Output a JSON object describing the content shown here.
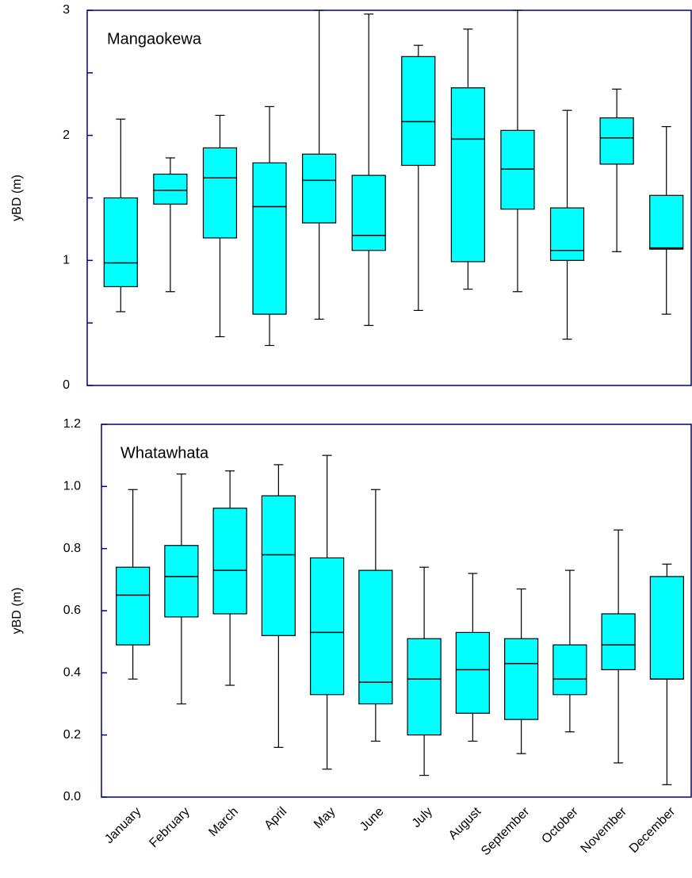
{
  "chart_data": [
    {
      "type": "box",
      "title": "Mangaokewa",
      "y_label": "yBD (m)",
      "ylim": [
        0,
        3
      ],
      "yticks": [
        0,
        1,
        2,
        3
      ],
      "minor_yticks": [
        0.5,
        1.5,
        2.5
      ],
      "color": "#00ffff",
      "axis_color": "#000080",
      "min": [
        0.59,
        0.75,
        0.39,
        0.32,
        0.53,
        0.48,
        0.6,
        0.77,
        0.75,
        0.37,
        1.07,
        0.57
      ],
      "q1": [
        0.79,
        1.45,
        1.18,
        0.57,
        1.3,
        1.08,
        1.76,
        0.99,
        1.41,
        1.0,
        1.77,
        1.09
      ],
      "median": [
        0.98,
        1.56,
        1.66,
        1.43,
        1.64,
        1.2,
        2.11,
        1.97,
        1.73,
        1.08,
        1.98,
        1.1
      ],
      "q3": [
        1.5,
        1.69,
        1.9,
        1.78,
        1.85,
        1.68,
        2.63,
        2.38,
        2.04,
        1.42,
        2.14,
        1.52
      ],
      "max": [
        2.13,
        1.82,
        2.16,
        2.23,
        3.0,
        2.97,
        2.72,
        2.85,
        3.0,
        2.2,
        2.37,
        2.07
      ]
    },
    {
      "type": "box",
      "title": "Whatawhata",
      "y_label": "yBD (m)",
      "categories": [
        "January",
        "February",
        "March",
        "April",
        "May",
        "June",
        "July",
        "August",
        "September",
        "October",
        "November",
        "December"
      ],
      "ylim": [
        0,
        1.2
      ],
      "yticks": [
        {
          "value": 0,
          "label": "0.0"
        },
        0.2,
        0.4,
        0.6,
        0.8,
        {
          "value": 1,
          "label": "1.0"
        },
        1.2
      ],
      "color": "#00ffff",
      "axis_color": "#000080",
      "min": [
        0.38,
        0.3,
        0.36,
        0.16,
        0.09,
        0.18,
        0.07,
        0.18,
        0.14,
        0.21,
        0.11,
        0.04
      ],
      "q1": [
        0.49,
        0.58,
        0.59,
        0.52,
        0.33,
        0.3,
        0.2,
        0.27,
        0.25,
        0.33,
        0.41,
        0.38
      ],
      "median": [
        0.65,
        0.71,
        0.73,
        0.78,
        0.53,
        0.37,
        0.38,
        0.41,
        0.43,
        0.38,
        0.49,
        0.38
      ],
      "q3": [
        0.74,
        0.81,
        0.93,
        0.97,
        0.77,
        0.73,
        0.51,
        0.53,
        0.51,
        0.49,
        0.59,
        0.71
      ],
      "max": [
        0.99,
        1.04,
        1.05,
        1.07,
        1.1,
        0.99,
        0.74,
        0.72,
        0.67,
        0.73,
        0.86,
        0.75
      ]
    }
  ]
}
